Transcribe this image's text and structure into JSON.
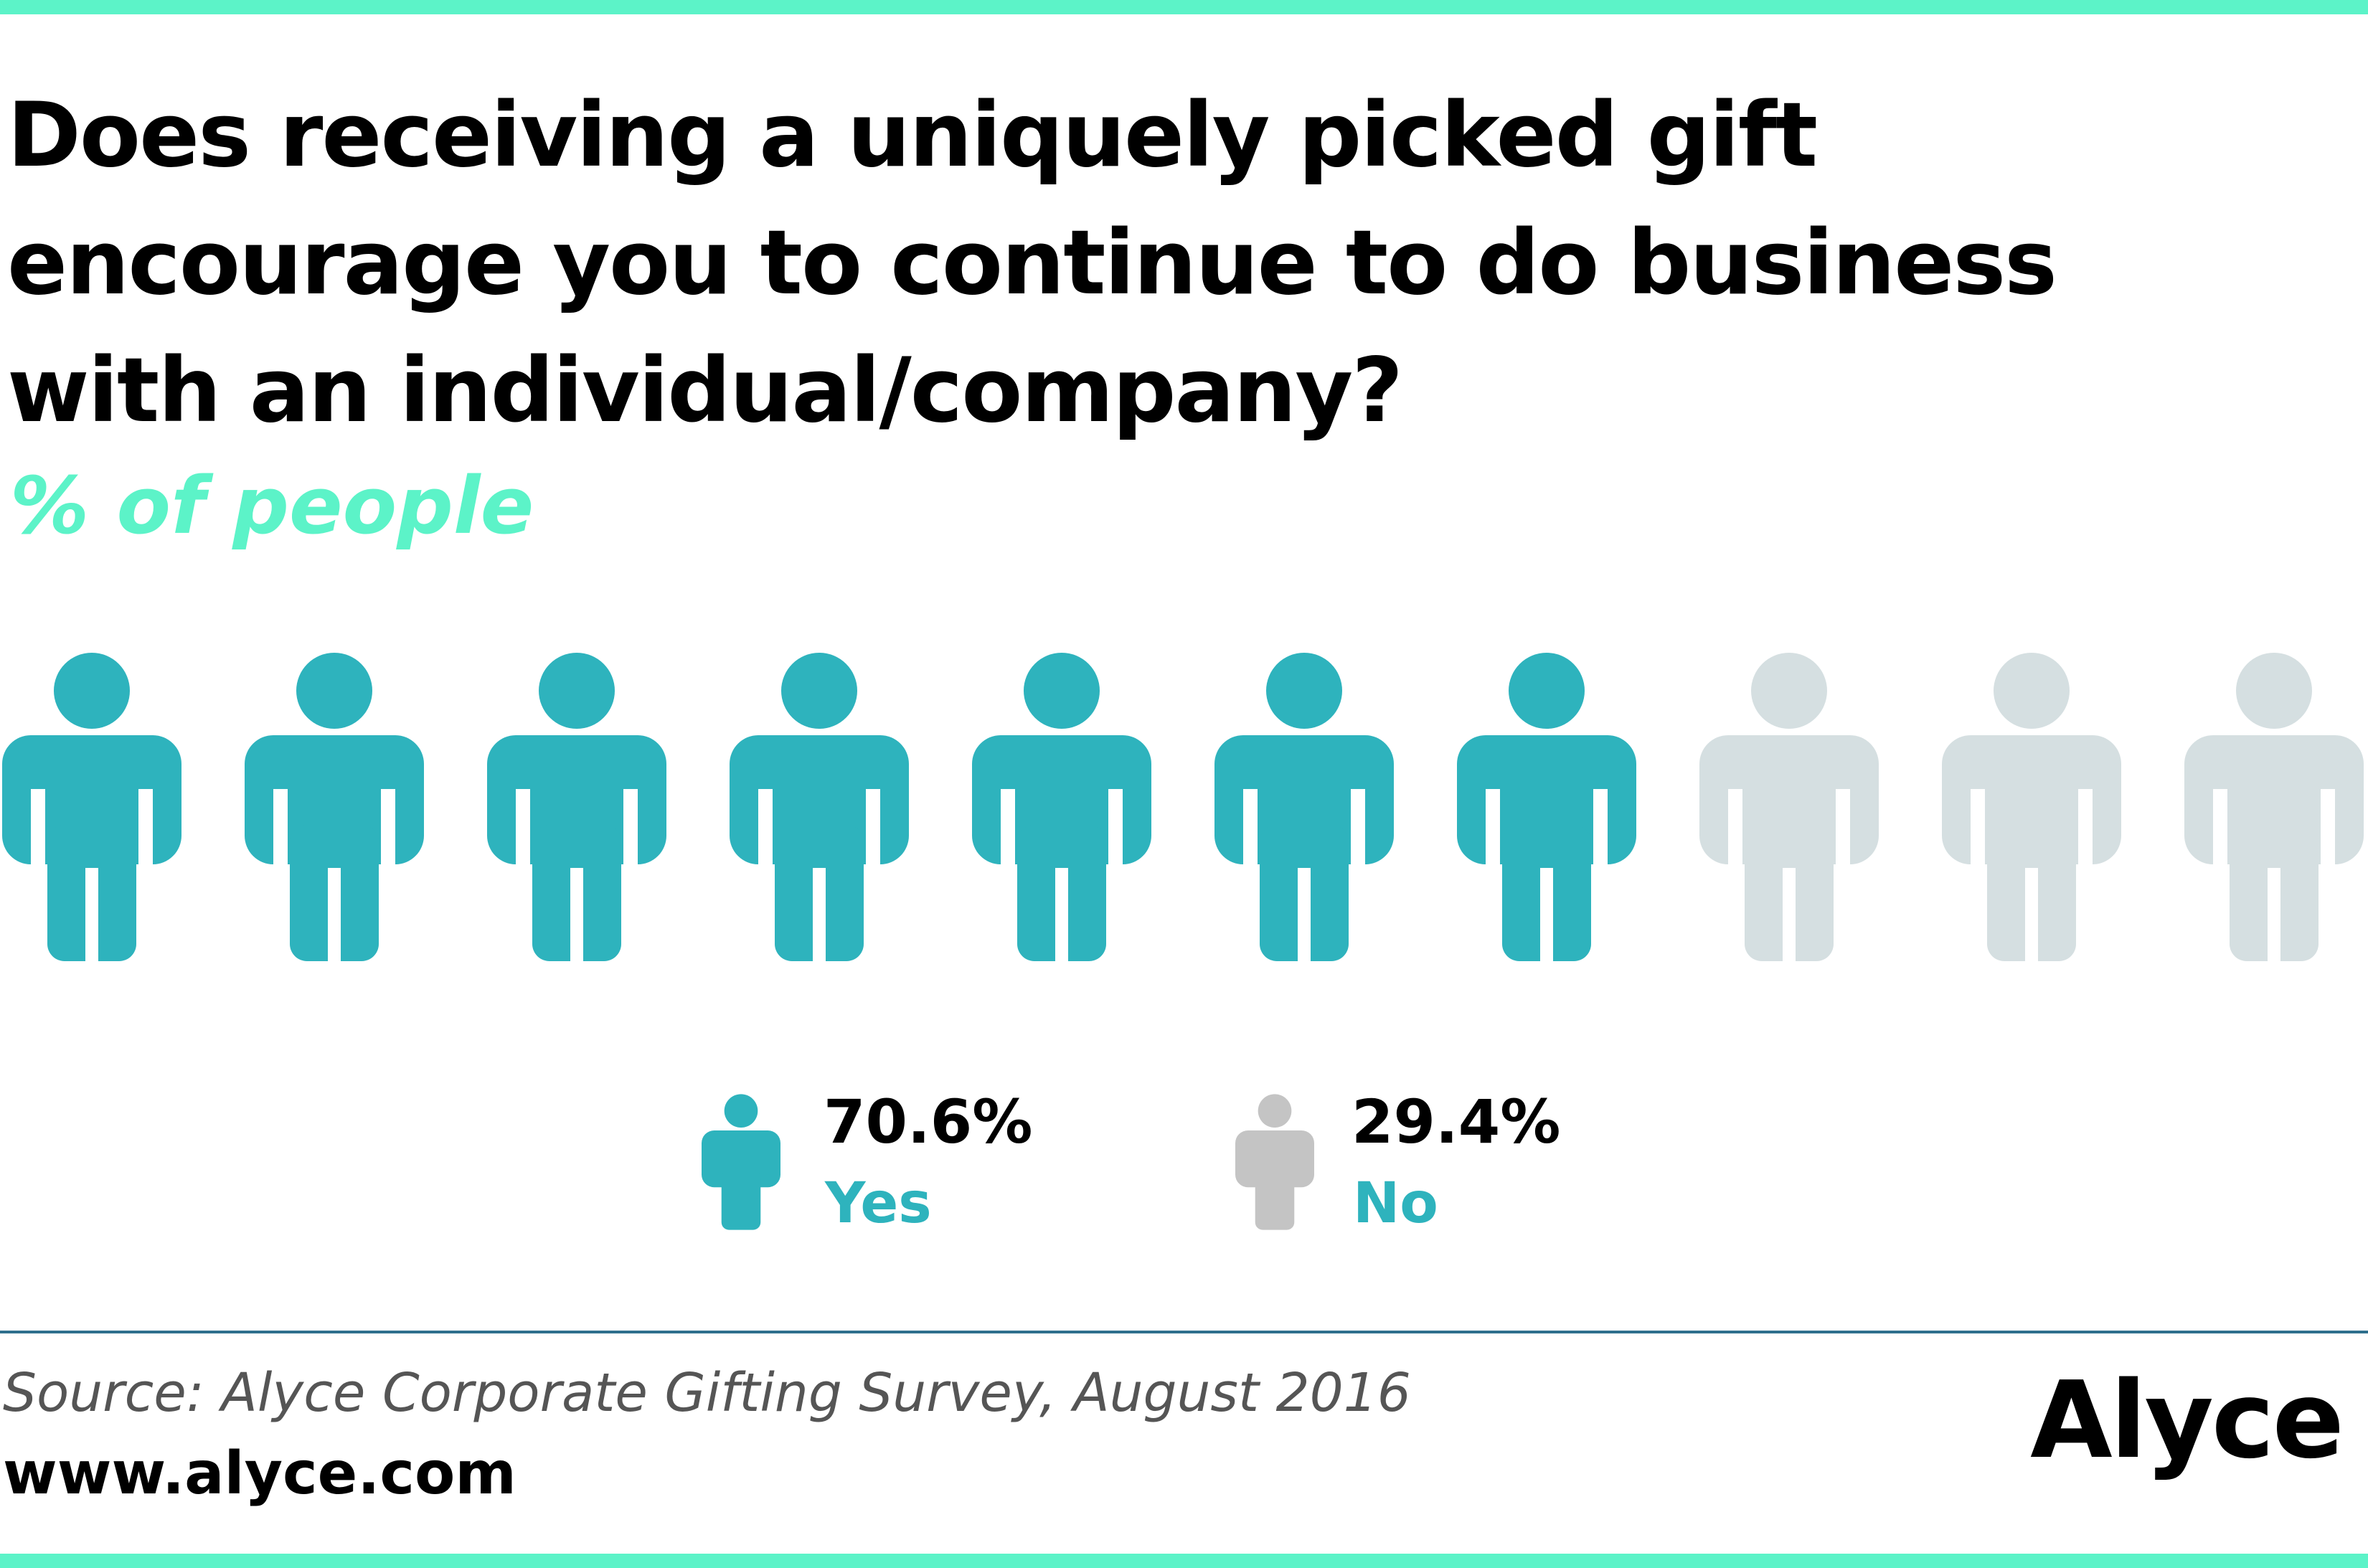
{
  "title": "Does receiving a uniquely picked gift\nencourage you  to continue to do business\nwith an individual/company?",
  "subtitle": "% of people",
  "colors": {
    "accent": "#5cf3c8",
    "yes": "#2eb3bd",
    "no": "#d5dfe1",
    "no_legend": "#c4c4c4",
    "label_text": "#2eb3bd"
  },
  "icon": "person-icon",
  "chart_data": {
    "type": "pictogram",
    "total_icons": 10,
    "filled_icons": 7,
    "series": [
      {
        "name": "Yes",
        "value": 70.6,
        "value_label": "70.6%"
      },
      {
        "name": "No",
        "value": 29.4,
        "value_label": "29.4%"
      }
    ]
  },
  "footer": {
    "source": "Source: Alyce Corporate Gifting Survey, August 2016",
    "website": "www.alyce.com",
    "logo_text": "Alyce"
  }
}
